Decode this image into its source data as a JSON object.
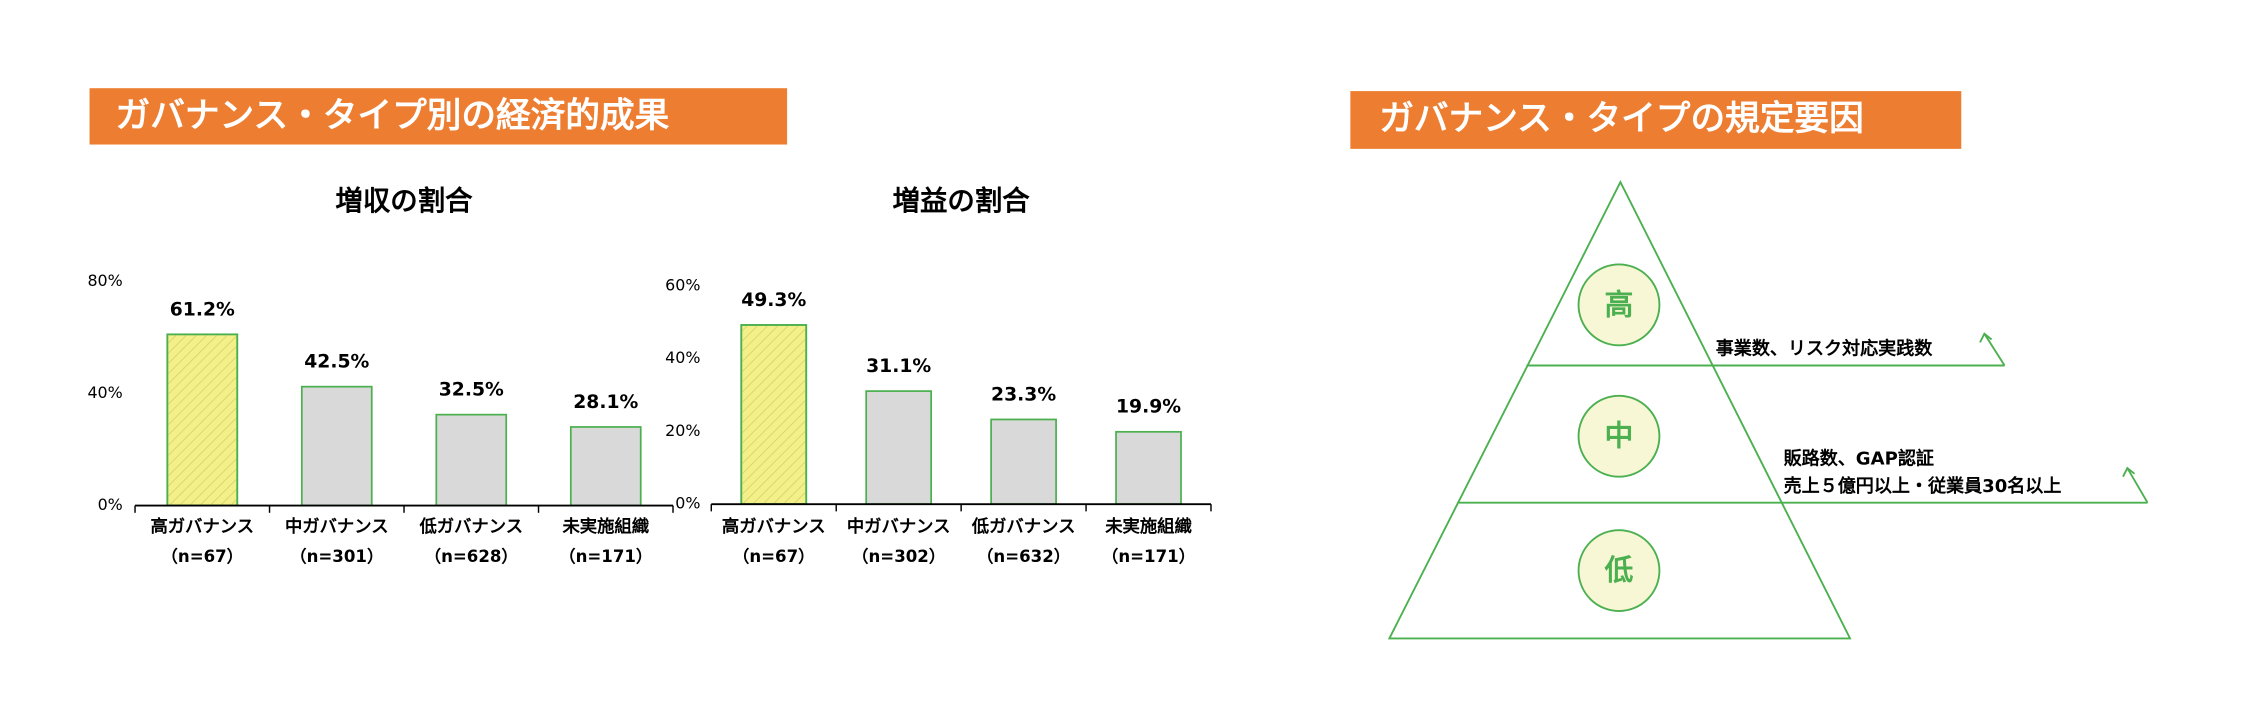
{
  "left_banner": "ガバナンス・タイプ別の経済的成果",
  "right_banner": "ガバナンス・タイプの規定要因",
  "chart_data": [
    {
      "type": "bar",
      "title": "増収の割合",
      "categories": [
        "高ガバナンス",
        "中ガバナンス",
        "低ガバナンス",
        "未実施組織"
      ],
      "category_sublabels": [
        "（n=67）",
        "（n=301）",
        "（n=628）",
        "（n=171）"
      ],
      "values": [
        61.2,
        42.5,
        32.5,
        28.1
      ],
      "value_labels": [
        "61.2%",
        "42.5%",
        "32.5%",
        "28.1%"
      ],
      "colors": [
        "#f3f08a",
        "#d9d9d9",
        "#d9d9d9",
        "#d9d9d9"
      ],
      "hatched": [
        true,
        false,
        false,
        false
      ],
      "edge_color": "#4cb050",
      "ylim": [
        0,
        80
      ],
      "yticks": [
        {
          "value": 0,
          "label": "0%"
        },
        {
          "value": 40,
          "label": "40%"
        },
        {
          "value": 80,
          "label": "80%"
        }
      ]
    },
    {
      "type": "bar",
      "title": "増益の割合",
      "categories": [
        "高ガバナンス",
        "中ガバナンス",
        "低ガバナンス",
        "未実施組織"
      ],
      "category_sublabels": [
        "（n=67）",
        "（n=302）",
        "（n=632）",
        "（n=171）"
      ],
      "values": [
        49.3,
        31.1,
        23.3,
        19.9
      ],
      "value_labels": [
        "49.3%",
        "31.1%",
        "23.3%",
        "19.9%"
      ],
      "colors": [
        "#f3f08a",
        "#d9d9d9",
        "#d9d9d9",
        "#d9d9d9"
      ],
      "hatched": [
        true,
        false,
        false,
        false
      ],
      "edge_color": "#4cb050",
      "ylim": [
        0,
        60
      ],
      "yticks": [
        {
          "value": 0,
          "label": "0%"
        },
        {
          "value": 20,
          "label": "20%"
        },
        {
          "value": 40,
          "label": "40%"
        },
        {
          "value": 60,
          "label": "60%"
        }
      ]
    }
  ],
  "pyramid": {
    "levels": [
      "高",
      "中",
      "低"
    ],
    "annotations": [
      "事業数、リスク対応実践数",
      "販路数、GAP認証",
      "売上５億円以上・従業員30名以上"
    ]
  }
}
